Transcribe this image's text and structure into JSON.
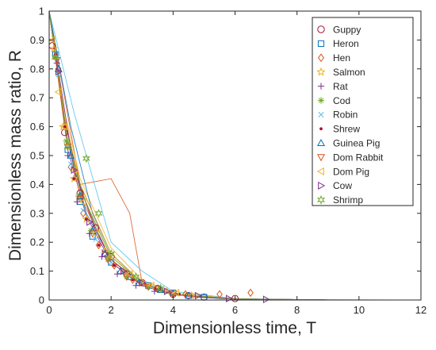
{
  "chart_data": {
    "type": "scatter",
    "title": "",
    "xlabel": "Dimensionless time, T",
    "ylabel": "Dimensionless mass ratio, R",
    "xlim": [
      0,
      12
    ],
    "ylim": [
      0,
      1
    ],
    "xticks": [
      "0",
      "2",
      "4",
      "6",
      "8",
      "10",
      "12"
    ],
    "yticks": [
      "0",
      "0.1",
      "0.2",
      "0.3",
      "0.4",
      "0.5",
      "0.6",
      "0.7",
      "0.8",
      "0.9",
      "1"
    ],
    "grid": false,
    "legend_position": "top-right",
    "series": [
      {
        "name": "Guppy",
        "marker": "circle",
        "color": "#a2142f",
        "x": [
          0.1,
          0.5,
          1.0,
          1.5,
          2.0,
          2.5,
          3.0,
          3.5,
          4.0,
          4.5,
          5.0,
          6.0
        ],
        "y": [
          0.88,
          0.58,
          0.37,
          0.25,
          0.15,
          0.09,
          0.06,
          0.04,
          0.02,
          0.015,
          0.01,
          0.005
        ],
        "curve_x": [
          0,
          0.5,
          1.0,
          1.5,
          2.0,
          3.0,
          4.0,
          5.0,
          6.0,
          8.0,
          11.0
        ],
        "curve_y": [
          1,
          0.63,
          0.39,
          0.24,
          0.14,
          0.055,
          0.02,
          0.008,
          0.003,
          0.001,
          0
        ]
      },
      {
        "name": "Heron",
        "marker": "square",
        "color": "#0072bd",
        "x": [
          0.2,
          0.6,
          1.0,
          1.4,
          2.0,
          2.6,
          3.2,
          4.0,
          5.0
        ],
        "y": [
          0.85,
          0.52,
          0.34,
          0.22,
          0.13,
          0.08,
          0.05,
          0.025,
          0.01
        ],
        "curve_x": [
          0,
          0.6,
          1.2,
          2.0,
          3.0,
          4.0,
          5.5,
          8.0
        ],
        "curve_y": [
          1,
          0.55,
          0.3,
          0.14,
          0.05,
          0.02,
          0.005,
          0
        ]
      },
      {
        "name": "Hen",
        "marker": "diamond",
        "color": "#d95319",
        "x": [
          0.3,
          0.7,
          1.1,
          1.6,
          2.1,
          2.7,
          3.5,
          4.4,
          5.5,
          6.5
        ],
        "y": [
          0.8,
          0.46,
          0.3,
          0.19,
          0.12,
          0.07,
          0.04,
          0.02,
          0.02,
          0.025
        ],
        "curve_x": [
          0,
          1.0,
          2.0,
          2.6,
          3.0,
          4.0,
          6.0,
          9.0
        ],
        "curve_y": [
          1,
          0.4,
          0.42,
          0.3,
          0.06,
          0.02,
          0.004,
          0
        ]
      },
      {
        "name": "Salmon",
        "marker": "star",
        "color": "#edb120",
        "x": [
          0.15,
          0.45,
          0.8,
          1.2,
          1.8,
          2.4,
          3.0,
          3.8,
          4.6
        ],
        "y": [
          0.87,
          0.6,
          0.42,
          0.28,
          0.17,
          0.1,
          0.06,
          0.03,
          0.015
        ],
        "curve_x": [
          0,
          0.5,
          1.0,
          2.0,
          3.0,
          4.0,
          6.0,
          9.0
        ],
        "curve_y": [
          1,
          0.65,
          0.42,
          0.18,
          0.07,
          0.025,
          0.004,
          0
        ]
      },
      {
        "name": "Rat",
        "marker": "plus",
        "color": "#7e2f8e",
        "x": [
          0.25,
          0.6,
          0.9,
          1.3,
          1.7,
          2.2,
          2.8,
          3.4
        ],
        "y": [
          0.82,
          0.5,
          0.34,
          0.23,
          0.15,
          0.09,
          0.05,
          0.03
        ],
        "curve_x": [
          0,
          0.6,
          1.2,
          2.0,
          3.0,
          4.5,
          7.0
        ],
        "curve_y": [
          1,
          0.52,
          0.29,
          0.13,
          0.05,
          0.012,
          0
        ]
      },
      {
        "name": "Cod",
        "marker": "asterisk",
        "color": "#77ac30",
        "x": [
          0.2,
          0.55,
          0.95,
          1.35,
          1.9,
          2.5,
          3.2
        ],
        "y": [
          0.84,
          0.55,
          0.36,
          0.24,
          0.14,
          0.08,
          0.045
        ],
        "curve_x": [
          0,
          0.5,
          1.0,
          2.0,
          3.0,
          4.0,
          6.0,
          9.0
        ],
        "curve_y": [
          1,
          0.6,
          0.38,
          0.15,
          0.06,
          0.02,
          0.004,
          0
        ]
      },
      {
        "name": "Robin",
        "marker": "cross",
        "color": "#4dbeee",
        "x": [
          0.3,
          0.7,
          1.1,
          1.5,
          2.0,
          2.6,
          3.3
        ],
        "y": [
          0.78,
          0.47,
          0.31,
          0.21,
          0.13,
          0.08,
          0.045
        ],
        "curve_x": [
          0,
          0.8,
          1.6,
          2.0,
          3.0,
          4.0,
          6.0,
          9.0
        ],
        "curve_y": [
          1,
          0.65,
          0.35,
          0.2,
          0.1,
          0.03,
          0.005,
          0
        ]
      },
      {
        "name": "Shrew",
        "marker": "point",
        "color": "#a2142f",
        "x": [
          0.2,
          0.5,
          0.8,
          1.2,
          1.6,
          2.1,
          2.7,
          3.4,
          4.2
        ],
        "y": [
          0.85,
          0.6,
          0.42,
          0.28,
          0.19,
          0.12,
          0.07,
          0.04,
          0.02
        ],
        "curve_x": [
          0,
          0.5,
          1.0,
          2.0,
          3.0,
          4.0,
          6.0,
          9.0
        ],
        "curve_y": [
          1,
          0.62,
          0.4,
          0.16,
          0.06,
          0.02,
          0.004,
          0
        ]
      },
      {
        "name": "Guinea Pig",
        "marker": "triangle-up",
        "color": "#0072bd",
        "x": [
          0.3,
          0.7,
          1.0,
          1.4,
          1.8,
          2.3,
          2.9,
          3.6,
          4.5
        ],
        "y": [
          0.8,
          0.5,
          0.36,
          0.24,
          0.16,
          0.1,
          0.06,
          0.035,
          0.015
        ],
        "curve_x": [
          0,
          0.7,
          1.4,
          2.0,
          3.0,
          4.0,
          6.0,
          9.0
        ],
        "curve_y": [
          1,
          0.6,
          0.3,
          0.16,
          0.06,
          0.02,
          0.004,
          0
        ]
      },
      {
        "name": "Dom Rabbit",
        "marker": "triangle-down",
        "color": "#d95319",
        "x": [
          0.25,
          0.6,
          1.0,
          1.4,
          1.9,
          2.5,
          3.2,
          4.0
        ],
        "y": [
          0.83,
          0.53,
          0.35,
          0.23,
          0.14,
          0.08,
          0.045,
          0.02
        ],
        "curve_x": [
          0,
          0.5,
          1.0,
          2.0,
          3.0,
          4.0,
          6.0,
          9.0
        ],
        "curve_y": [
          1,
          0.6,
          0.36,
          0.14,
          0.05,
          0.018,
          0.003,
          0
        ]
      },
      {
        "name": "Dom Pig",
        "marker": "triangle-left",
        "color": "#edb120",
        "x": [
          0.1,
          0.3,
          0.5,
          0.8,
          1.1,
          1.5,
          2.0,
          2.6,
          3.3,
          4.1
        ],
        "y": [
          0.9,
          0.72,
          0.6,
          0.45,
          0.34,
          0.23,
          0.15,
          0.09,
          0.05,
          0.025
        ],
        "curve_x": [
          0,
          0.5,
          1.0,
          2.0,
          3.0,
          4.0,
          6.0,
          9.0
        ],
        "curve_y": [
          1,
          0.63,
          0.4,
          0.16,
          0.06,
          0.02,
          0.004,
          0
        ]
      },
      {
        "name": "Cow",
        "marker": "triangle-right",
        "color": "#7e2f8e",
        "x": [
          0.3,
          0.8,
          1.3,
          1.8,
          2.4,
          3.0,
          3.8,
          4.8,
          5.8,
          7.0
        ],
        "y": [
          0.79,
          0.45,
          0.27,
          0.16,
          0.1,
          0.06,
          0.03,
          0.015,
          0.005,
          0.002
        ],
        "curve_x": [
          0,
          0.8,
          1.5,
          2.0,
          3.0,
          4.0,
          6.0,
          9.0
        ],
        "curve_y": [
          1,
          0.45,
          0.25,
          0.13,
          0.05,
          0.02,
          0.004,
          0
        ]
      },
      {
        "name": "Shrimp",
        "marker": "hexagram",
        "color": "#77ac30",
        "x": [
          0.2,
          0.6,
          1.2,
          1.6,
          2.0,
          2.8,
          3.6
        ],
        "y": [
          0.84,
          0.53,
          0.49,
          0.3,
          0.16,
          0.08,
          0.04
        ],
        "curve_x": [
          0,
          0.6,
          1.2,
          2.0,
          3.0,
          4.0,
          6.0,
          9.0
        ],
        "curve_y": [
          1,
          0.55,
          0.33,
          0.15,
          0.06,
          0.02,
          0.004,
          0
        ]
      }
    ]
  }
}
